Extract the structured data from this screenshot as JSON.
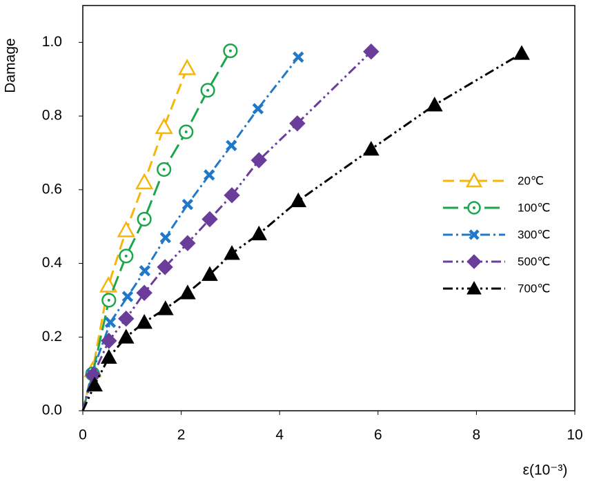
{
  "chart_data": {
    "type": "line",
    "xlabel": "ε(10⁻³)",
    "ylabel": "Damage",
    "xlim": [
      0,
      10
    ],
    "ylim": [
      0,
      1.1
    ],
    "xticks": [
      0,
      2,
      4,
      6,
      8,
      10
    ],
    "yticks": [
      {
        "value": 0,
        "label": "0.0"
      },
      0.2,
      0.4,
      0.6,
      0.8,
      {
        "value": 1,
        "label": "1.0"
      }
    ],
    "legend": "right",
    "series": [
      {
        "name": "20℃",
        "color": "#f5b50a",
        "linestyle": "dashed",
        "marker": "triangle-open",
        "x": [
          0,
          0.2,
          0.52,
          0.88,
          1.25,
          1.65,
          2.12
        ],
        "values": [
          0,
          0.11,
          0.34,
          0.49,
          0.62,
          0.77,
          0.93
        ]
      },
      {
        "name": "100℃",
        "color": "#1aa64a",
        "linestyle": "longdash",
        "marker": "circle-open",
        "x": [
          0,
          0.2,
          0.53,
          0.88,
          1.25,
          1.65,
          2.1,
          2.54,
          3.0
        ],
        "values": [
          0,
          0.1,
          0.3,
          0.42,
          0.52,
          0.655,
          0.757,
          0.87,
          0.977
        ]
      },
      {
        "name": "300℃",
        "color": "#1f78c8",
        "linestyle": "dashdot",
        "marker": "cross",
        "x": [
          0,
          0.18,
          0.56,
          0.91,
          1.26,
          1.68,
          2.13,
          2.57,
          3.02,
          3.56,
          4.38
        ],
        "values": [
          0,
          0.1,
          0.24,
          0.31,
          0.38,
          0.47,
          0.56,
          0.64,
          0.72,
          0.82,
          0.96
        ]
      },
      {
        "name": "500℃",
        "color": "#6a3d9a",
        "linestyle": "dashdotdot",
        "marker": "diamond",
        "x": [
          0,
          0.21,
          0.53,
          0.88,
          1.25,
          1.67,
          2.13,
          2.58,
          3.03,
          3.58,
          4.36,
          5.86
        ],
        "values": [
          0,
          0.097,
          0.19,
          0.25,
          0.32,
          0.39,
          0.455,
          0.52,
          0.585,
          0.68,
          0.78,
          0.975
        ]
      },
      {
        "name": "700℃",
        "color": "#000000",
        "linestyle": "dashdotdot",
        "marker": "triangle",
        "x": [
          0,
          0.24,
          0.53,
          0.88,
          1.25,
          1.68,
          2.13,
          2.58,
          3.03,
          3.58,
          4.38,
          5.86,
          7.15,
          8.92
        ],
        "values": [
          0,
          0.07,
          0.145,
          0.2,
          0.24,
          0.277,
          0.32,
          0.37,
          0.427,
          0.48,
          0.57,
          0.71,
          0.83,
          0.97
        ]
      }
    ]
  }
}
